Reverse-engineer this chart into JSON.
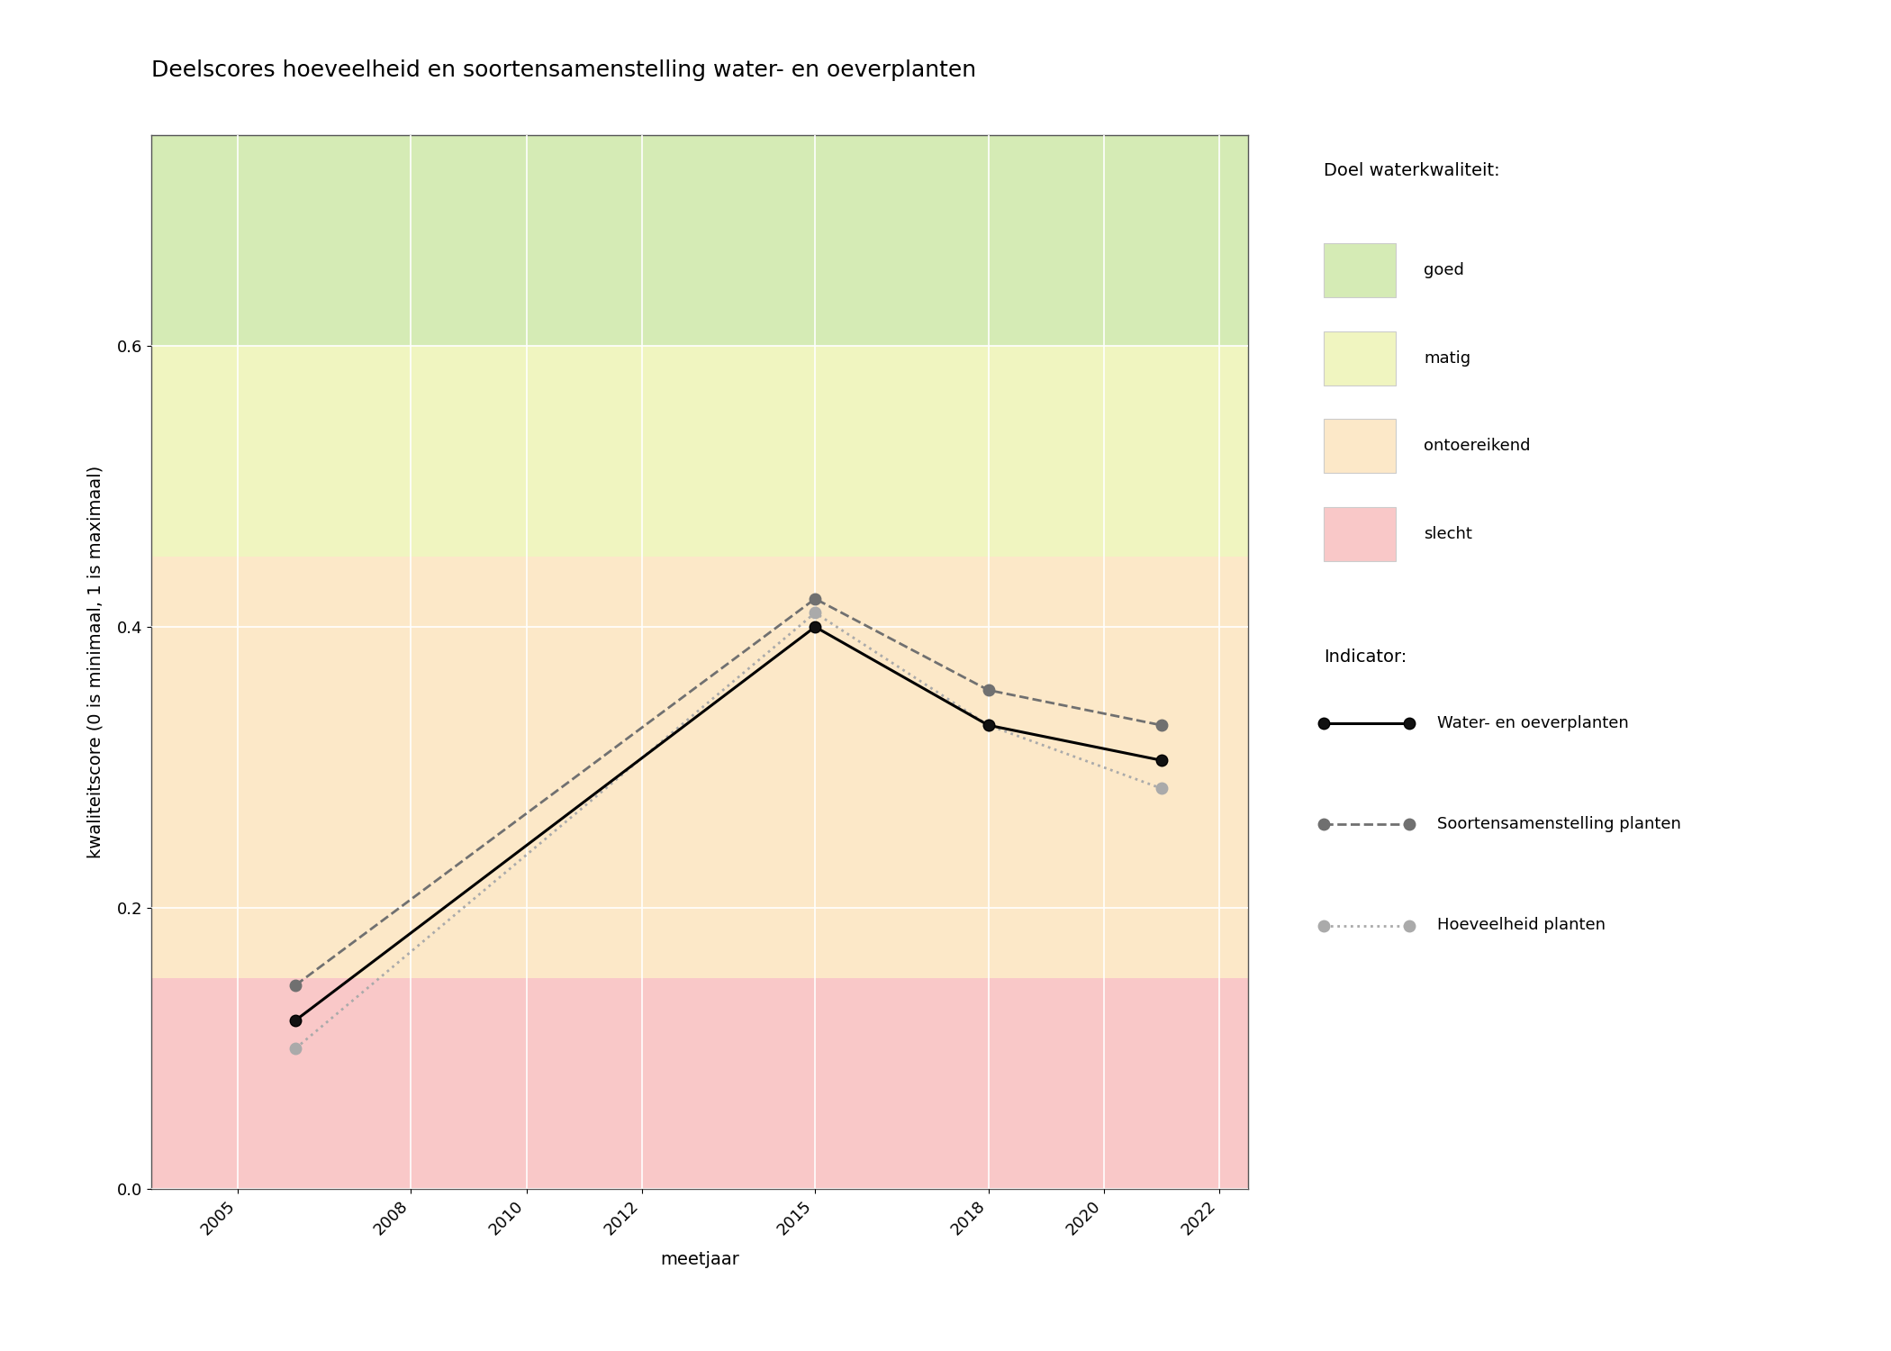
{
  "title": "Deelscores hoeveelheid en soortensamenstelling water- en oeverplanten",
  "xlabel": "meetjaar",
  "ylabel": "kwaliteitscore (0 is minimaal, 1 is maximaal)",
  "xlim": [
    2003.5,
    2022.5
  ],
  "ylim": [
    0.0,
    0.75
  ],
  "yticks": [
    0.0,
    0.2,
    0.4,
    0.6
  ],
  "xticks": [
    2005,
    2008,
    2010,
    2012,
    2015,
    2018,
    2020,
    2022
  ],
  "bg_color": "#ffffff",
  "plot_bg_color": "#ffffff",
  "zones": [
    {
      "label": "goed",
      "ymin": 0.6,
      "ymax": 0.75,
      "color": "#d5ebb5"
    },
    {
      "label": "matig",
      "ymin": 0.45,
      "ymax": 0.6,
      "color": "#f0f5c0"
    },
    {
      "label": "ontoereikend",
      "ymin": 0.15,
      "ymax": 0.45,
      "color": "#fce8c8"
    },
    {
      "label": "slecht",
      "ymin": 0.0,
      "ymax": 0.15,
      "color": "#f9c8c8"
    }
  ],
  "series": {
    "water_oeverplanten": {
      "label": "Water- en oeverplanten",
      "x": [
        2006,
        2015,
        2018,
        2021
      ],
      "y": [
        0.12,
        0.4,
        0.33,
        0.305
      ],
      "color": "#000000",
      "linestyle": "solid",
      "linewidth": 2.2,
      "marker": "o",
      "markersize": 9,
      "markerfacecolor": "#111111",
      "zorder": 5
    },
    "soortensamenstelling": {
      "label": "Soortensamenstelling planten",
      "x": [
        2006,
        2015,
        2018,
        2021
      ],
      "y": [
        0.145,
        0.42,
        0.355,
        0.33
      ],
      "color": "#707070",
      "linestyle": "dashed",
      "linewidth": 2.0,
      "marker": "o",
      "markersize": 9,
      "markerfacecolor": "#707070",
      "zorder": 4
    },
    "hoeveelheid": {
      "label": "Hoeveelheid planten",
      "x": [
        2006,
        2015,
        2018,
        2021
      ],
      "y": [
        0.1,
        0.41,
        0.33,
        0.285
      ],
      "color": "#aaaaaa",
      "linestyle": "dotted",
      "linewidth": 2.0,
      "marker": "o",
      "markersize": 9,
      "markerfacecolor": "#aaaaaa",
      "zorder": 3
    }
  },
  "legend_doel_title": "Doel waterkwaliteit:",
  "legend_indicator_title": "Indicator:",
  "legend_zone_colors": {
    "goed": "#d5ebb5",
    "matig": "#f0f5c0",
    "ontoereikend": "#fce8c8",
    "slecht": "#f9c8c8"
  },
  "title_fontsize": 18,
  "label_fontsize": 14,
  "tick_fontsize": 13,
  "legend_fontsize": 13
}
